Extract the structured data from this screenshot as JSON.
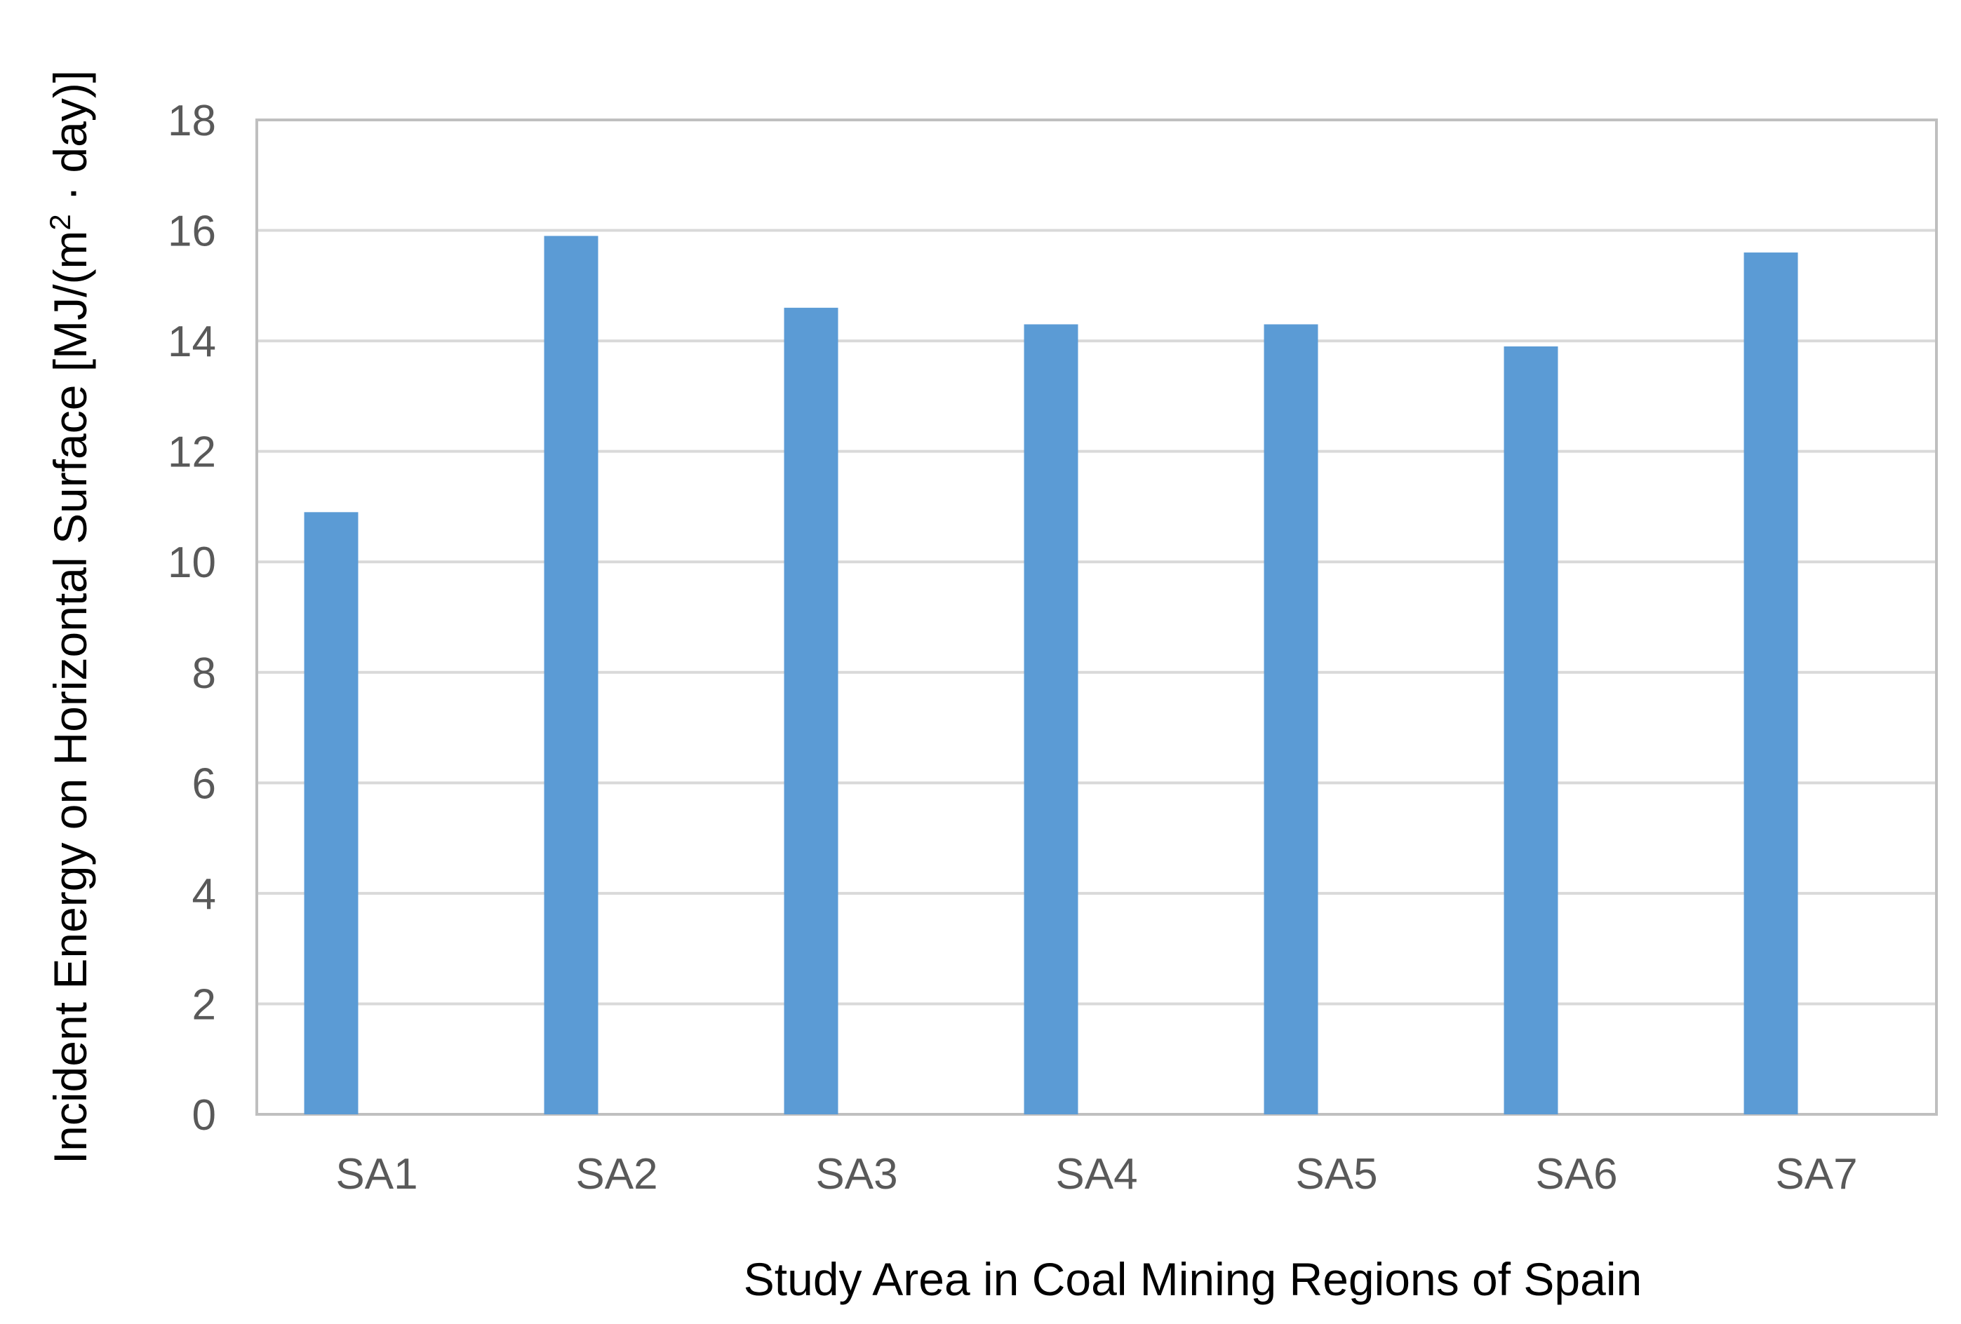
{
  "chart_data": {
    "type": "bar",
    "title": "",
    "xlabel": "Study Area in Coal Mining Regions of Spain",
    "ylabel_main": "Incident Energy on Horizontal Surface [MJ/(m",
    "ylabel_sup": "2",
    "ylabel_tail": " · day)]",
    "categories": [
      "SA1",
      "SA2",
      "SA3",
      "SA4",
      "SA5",
      "SA6",
      "SA7"
    ],
    "values": [
      10.9,
      15.9,
      14.6,
      14.3,
      14.3,
      13.9,
      15.6
    ],
    "ylim": [
      0,
      18
    ],
    "yticks": [
      "0",
      "2",
      "4",
      "6",
      "8",
      "10",
      "12",
      "14",
      "16",
      "18"
    ],
    "grid": true,
    "legend": "none",
    "bar_color": "#5b9bd5"
  }
}
